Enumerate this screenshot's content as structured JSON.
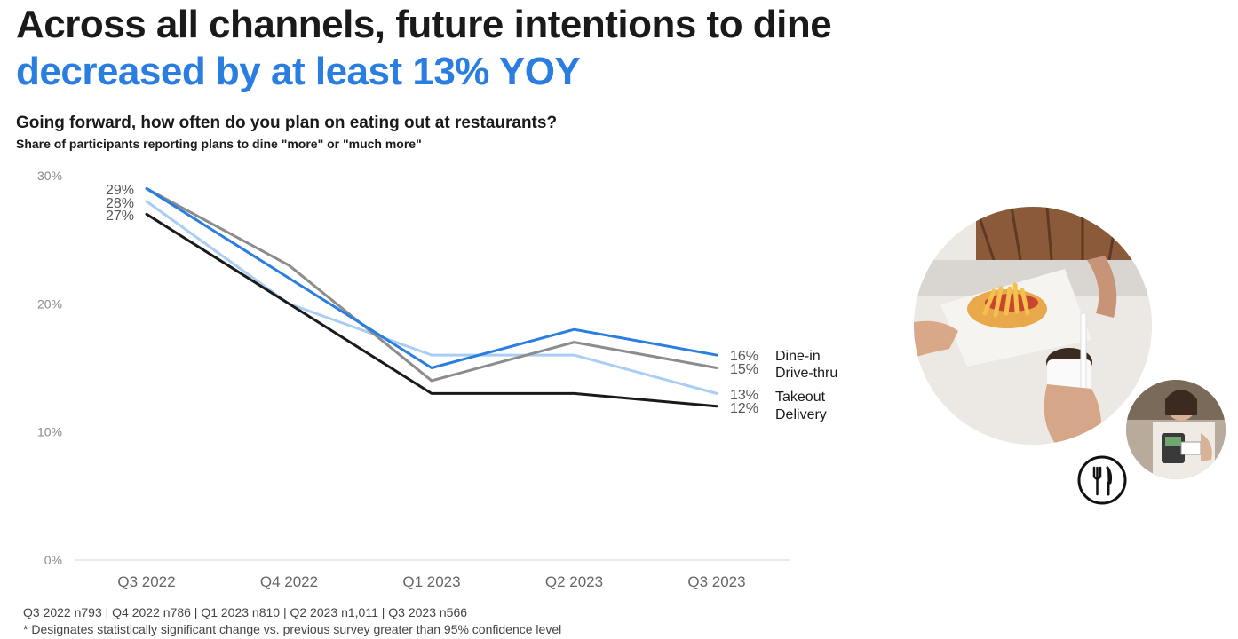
{
  "headline": {
    "line1": "Across all channels, future intentions to dine",
    "line2": "decreased by at least 13% YOY"
  },
  "question": "Going forward, how often do you plan on eating out at restaurants?",
  "subquestion": {
    "prefix": "Share of participants reporting plans to dine ",
    "emphasis": "\"more\" or \"much more\""
  },
  "chart_data": {
    "type": "line",
    "categories": [
      "Q3 2022",
      "Q4 2022",
      "Q1 2023",
      "Q2 2023",
      "Q3 2023"
    ],
    "ylim": [
      0,
      30
    ],
    "yticks": [
      0,
      10,
      20,
      30
    ],
    "ytick_labels": [
      "0%",
      "10%",
      "20%",
      "30%"
    ],
    "series": [
      {
        "name": "Dine-in",
        "color": "#2a7de1",
        "values": [
          29,
          22,
          15,
          18,
          16
        ]
      },
      {
        "name": "Drive-thru",
        "color": "#8c8c8c",
        "values": [
          29,
          23,
          14,
          17,
          15
        ]
      },
      {
        "name": "Takeout",
        "color": "#a9cdf5",
        "values": [
          28,
          20,
          16,
          16,
          13
        ]
      },
      {
        "name": "Delivery",
        "color": "#1a1a1a",
        "values": [
          27,
          20,
          13,
          13,
          12
        ]
      }
    ],
    "start_labels": [
      "29%",
      "28%",
      "27%"
    ],
    "end_labels": [
      "16%",
      "15%",
      "13%",
      "12%"
    ],
    "legend": [
      "Dine-in",
      "Drive-thru",
      "Takeout",
      "Delivery"
    ]
  },
  "footnotes": {
    "samples": "Q3 2022 n793 | Q4 2022 n786 | Q1 2023 n810 | Q2 2023 n1,011 |  Q3 2023 n566",
    "significance": "* Designates statistically significant change vs. previous survey greater than 95% confidence level"
  },
  "icons": {
    "utensils": "fork-knife-icon"
  }
}
